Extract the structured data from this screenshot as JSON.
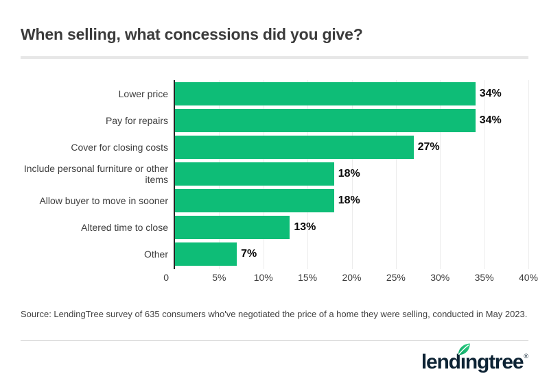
{
  "title": "When selling, what concessions did you give?",
  "chart_data": {
    "type": "bar",
    "orientation": "horizontal",
    "title": "When selling, what concessions did you give?",
    "categories": [
      "Lower price",
      "Pay for repairs",
      "Cover for closing costs",
      "Include personal furniture or other items",
      "Allow buyer to move in sooner",
      "Altered time to close",
      "Other"
    ],
    "values": [
      34,
      34,
      27,
      18,
      18,
      13,
      7
    ],
    "value_labels": [
      "34%",
      "34%",
      "27%",
      "18%",
      "18%",
      "13%",
      "7%"
    ],
    "xlim": [
      0,
      40
    ],
    "x_tick_values": [
      0,
      5,
      10,
      15,
      20,
      25,
      30,
      35,
      40
    ],
    "x_tick_labels": [
      "0",
      "5%",
      "10%",
      "15%",
      "20%",
      "25%",
      "30%",
      "35%",
      "40%"
    ],
    "xlabel": "",
    "ylabel": "",
    "grid": true,
    "legend": "none",
    "bar_color": "#0ebd77"
  },
  "source": "Source: LendingTree survey of 635 consumers who've negotiated the price of a home they were selling, conducted in May 2023.",
  "logo": {
    "name": "lendingtree",
    "wordmark_pre": "lend",
    "wordmark_i": "ı",
    "wordmark_post": "ngtree",
    "registered": "®"
  },
  "colors": {
    "bar_green": "#0ebd77",
    "logo_navy": "#0d2334",
    "leaf_green_dark": "#0aa564",
    "leaf_green_light": "#33d287",
    "title_text": "#3b3b3b",
    "axis_line": "#242424",
    "gridline": "#ececec",
    "divider_top": "#e7e7e7",
    "divider_bottom": "#cfcfcf"
  }
}
